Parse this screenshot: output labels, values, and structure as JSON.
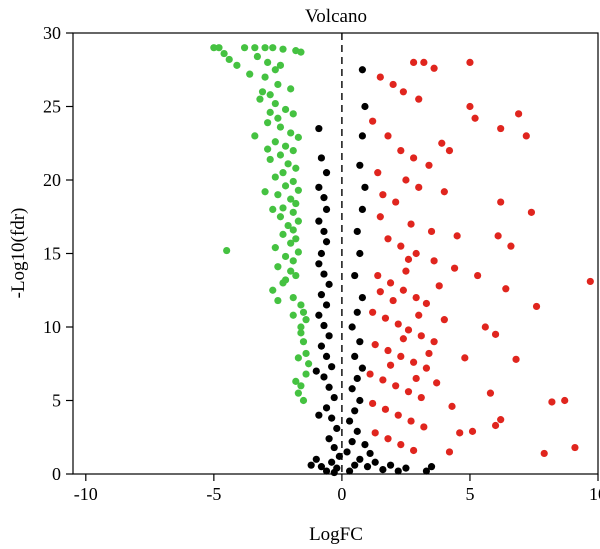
{
  "chart_data": {
    "type": "scatter",
    "title": "Volcano",
    "xlabel": "LogFC",
    "ylabel": "-Log10(fdr)",
    "xlim": [
      -10.5,
      10
    ],
    "ylim": [
      0,
      30
    ],
    "xticks": [
      -10,
      -5,
      0,
      5,
      10
    ],
    "yticks": [
      0,
      5,
      10,
      15,
      20,
      25,
      30
    ],
    "grid": false,
    "legend": "none",
    "vline": 0,
    "series": [
      {
        "color": "#45c241",
        "points": [
          [
            -5.0,
            29.0
          ],
          [
            -4.8,
            29.0
          ],
          [
            -4.6,
            28.6
          ],
          [
            -4.4,
            28.2
          ],
          [
            -4.1,
            27.8
          ],
          [
            -3.8,
            29.0
          ],
          [
            -3.4,
            29.0
          ],
          [
            -3.0,
            29.0
          ],
          [
            -2.7,
            29.0
          ],
          [
            -2.3,
            28.9
          ],
          [
            -1.8,
            28.8
          ],
          [
            -1.6,
            28.7
          ],
          [
            -2.9,
            28.0
          ],
          [
            -2.6,
            27.5
          ],
          [
            -3.0,
            27.0
          ],
          [
            -2.5,
            26.5
          ],
          [
            -2.0,
            26.2
          ],
          [
            -2.8,
            25.8
          ],
          [
            -3.2,
            25.5
          ],
          [
            -2.6,
            25.2
          ],
          [
            -2.2,
            24.8
          ],
          [
            -1.9,
            24.5
          ],
          [
            -2.5,
            24.2
          ],
          [
            -2.9,
            23.9
          ],
          [
            -2.4,
            23.6
          ],
          [
            -2.0,
            23.2
          ],
          [
            -1.7,
            22.9
          ],
          [
            -2.6,
            22.6
          ],
          [
            -2.2,
            22.3
          ],
          [
            -1.9,
            22.0
          ],
          [
            -2.4,
            21.7
          ],
          [
            -2.8,
            21.4
          ],
          [
            -2.1,
            21.1
          ],
          [
            -1.8,
            20.8
          ],
          [
            -2.3,
            20.5
          ],
          [
            -2.6,
            20.2
          ],
          [
            -1.9,
            19.9
          ],
          [
            -2.2,
            19.6
          ],
          [
            -1.7,
            19.3
          ],
          [
            -2.5,
            19.0
          ],
          [
            -2.0,
            18.7
          ],
          [
            -1.8,
            18.4
          ],
          [
            -2.3,
            18.1
          ],
          [
            -1.9,
            17.8
          ],
          [
            -2.4,
            17.5
          ],
          [
            -1.7,
            17.2
          ],
          [
            -2.1,
            16.9
          ],
          [
            -1.9,
            16.6
          ],
          [
            -2.3,
            16.3
          ],
          [
            -1.8,
            16.0
          ],
          [
            -2.0,
            15.7
          ],
          [
            -2.6,
            15.4
          ],
          [
            -1.7,
            15.1
          ],
          [
            -2.2,
            14.8
          ],
          [
            -1.9,
            14.5
          ],
          [
            -2.5,
            14.1
          ],
          [
            -2.0,
            13.8
          ],
          [
            -1.8,
            13.5
          ],
          [
            -2.3,
            13.0
          ],
          [
            -2.7,
            12.5
          ],
          [
            -1.9,
            12.0
          ],
          [
            -1.6,
            11.5
          ],
          [
            -1.5,
            11.0
          ],
          [
            -1.4,
            10.5
          ],
          [
            -1.6,
            10.0
          ],
          [
            -1.5,
            9.0
          ],
          [
            -1.4,
            8.2
          ],
          [
            -1.3,
            7.5
          ],
          [
            -1.4,
            6.8
          ],
          [
            -1.6,
            6.0
          ],
          [
            -1.7,
            5.5
          ],
          [
            -1.5,
            5.0
          ],
          [
            -4.5,
            15.2
          ],
          [
            -3.3,
            28.4
          ],
          [
            -3.6,
            27.2
          ],
          [
            -3.1,
            26.0
          ],
          [
            -2.8,
            24.6
          ],
          [
            -2.4,
            27.8
          ],
          [
            -3.4,
            23.0
          ],
          [
            -2.9,
            22.1
          ],
          [
            -3.0,
            19.2
          ],
          [
            -2.7,
            18.0
          ],
          [
            -2.2,
            13.2
          ],
          [
            -2.5,
            11.8
          ],
          [
            -1.9,
            10.8
          ],
          [
            -1.6,
            9.6
          ],
          [
            -1.7,
            7.9
          ],
          [
            -1.8,
            6.3
          ]
        ]
      },
      {
        "color": "#000000",
        "points": [
          [
            -0.9,
            23.5
          ],
          [
            -0.8,
            21.5
          ],
          [
            -0.6,
            20.5
          ],
          [
            -0.9,
            19.5
          ],
          [
            -0.7,
            18.8
          ],
          [
            -0.6,
            18.0
          ],
          [
            -0.9,
            17.2
          ],
          [
            -0.7,
            16.5
          ],
          [
            -0.6,
            15.8
          ],
          [
            -0.8,
            15.0
          ],
          [
            -0.9,
            14.3
          ],
          [
            -0.7,
            13.6
          ],
          [
            -0.5,
            12.9
          ],
          [
            -0.8,
            12.2
          ],
          [
            -0.6,
            11.5
          ],
          [
            -0.9,
            10.8
          ],
          [
            -0.7,
            10.1
          ],
          [
            -0.5,
            9.4
          ],
          [
            -0.8,
            8.7
          ],
          [
            -0.6,
            8.0
          ],
          [
            -0.4,
            7.3
          ],
          [
            -0.7,
            6.6
          ],
          [
            -0.5,
            5.9
          ],
          [
            -0.3,
            5.2
          ],
          [
            -0.6,
            4.5
          ],
          [
            -0.4,
            3.8
          ],
          [
            -0.2,
            3.1
          ],
          [
            -0.5,
            2.4
          ],
          [
            -0.3,
            1.8
          ],
          [
            -0.1,
            1.2
          ],
          [
            -0.4,
            0.8
          ],
          [
            -0.2,
            0.4
          ],
          [
            -0.6,
            0.2
          ],
          [
            -0.8,
            0.5
          ],
          [
            -0.3,
            0.1
          ],
          [
            0.3,
            0.2
          ],
          [
            0.5,
            0.6
          ],
          [
            0.7,
            1.0
          ],
          [
            0.2,
            1.5
          ],
          [
            0.4,
            2.2
          ],
          [
            0.6,
            2.9
          ],
          [
            0.3,
            3.6
          ],
          [
            0.5,
            4.3
          ],
          [
            0.7,
            5.0
          ],
          [
            0.4,
            5.8
          ],
          [
            0.6,
            6.5
          ],
          [
            0.8,
            7.2
          ],
          [
            0.5,
            8.0
          ],
          [
            0.7,
            9.0
          ],
          [
            0.4,
            10.0
          ],
          [
            0.6,
            11.0
          ],
          [
            0.8,
            12.0
          ],
          [
            0.5,
            13.5
          ],
          [
            0.7,
            15.0
          ],
          [
            0.6,
            16.5
          ],
          [
            0.8,
            18.0
          ],
          [
            0.9,
            19.5
          ],
          [
            0.7,
            21.0
          ],
          [
            0.8,
            23.0
          ],
          [
            0.9,
            25.0
          ],
          [
            0.8,
            27.5
          ],
          [
            1.0,
            0.5
          ],
          [
            1.3,
            0.8
          ],
          [
            1.6,
            0.3
          ],
          [
            1.9,
            0.6
          ],
          [
            2.2,
            0.2
          ],
          [
            2.5,
            0.4
          ],
          [
            1.1,
            1.4
          ],
          [
            0.9,
            2.0
          ],
          [
            3.3,
            0.2
          ],
          [
            3.5,
            0.5
          ],
          [
            -1.0,
            1.0
          ],
          [
            -1.2,
            0.6
          ],
          [
            -0.9,
            4.0
          ],
          [
            -1.0,
            7.0
          ]
        ]
      },
      {
        "color": "#e0251e",
        "points": [
          [
            2.8,
            28.0
          ],
          [
            3.2,
            28.0
          ],
          [
            3.6,
            27.6
          ],
          [
            5.0,
            28.0
          ],
          [
            1.5,
            27.0
          ],
          [
            2.0,
            26.5
          ],
          [
            2.4,
            26.0
          ],
          [
            3.0,
            25.5
          ],
          [
            5.0,
            25.0
          ],
          [
            6.9,
            24.5
          ],
          [
            5.2,
            24.2
          ],
          [
            6.2,
            23.5
          ],
          [
            7.2,
            23.0
          ],
          [
            1.2,
            24.0
          ],
          [
            1.8,
            23.0
          ],
          [
            2.3,
            22.0
          ],
          [
            2.8,
            21.5
          ],
          [
            3.4,
            21.0
          ],
          [
            3.9,
            22.5
          ],
          [
            4.2,
            22.0
          ],
          [
            1.4,
            20.5
          ],
          [
            2.5,
            20.0
          ],
          [
            3.0,
            19.5
          ],
          [
            4.0,
            19.2
          ],
          [
            1.6,
            19.0
          ],
          [
            2.1,
            18.5
          ],
          [
            6.2,
            18.5
          ],
          [
            7.4,
            17.8
          ],
          [
            1.5,
            17.5
          ],
          [
            2.7,
            17.0
          ],
          [
            3.5,
            16.5
          ],
          [
            4.5,
            16.2
          ],
          [
            6.1,
            16.2
          ],
          [
            6.6,
            15.5
          ],
          [
            1.8,
            16.0
          ],
          [
            2.3,
            15.5
          ],
          [
            2.9,
            15.0
          ],
          [
            3.6,
            14.5
          ],
          [
            4.4,
            14.0
          ],
          [
            5.3,
            13.5
          ],
          [
            9.7,
            13.1
          ],
          [
            1.4,
            13.5
          ],
          [
            1.9,
            13.0
          ],
          [
            2.4,
            12.5
          ],
          [
            2.9,
            12.0
          ],
          [
            3.3,
            11.6
          ],
          [
            6.4,
            12.6
          ],
          [
            7.6,
            11.4
          ],
          [
            1.2,
            11.0
          ],
          [
            1.7,
            10.6
          ],
          [
            2.2,
            10.2
          ],
          [
            2.6,
            9.8
          ],
          [
            3.1,
            9.4
          ],
          [
            3.6,
            9.0
          ],
          [
            5.6,
            10.0
          ],
          [
            6.0,
            9.5
          ],
          [
            1.3,
            8.8
          ],
          [
            1.8,
            8.4
          ],
          [
            2.3,
            8.0
          ],
          [
            2.8,
            7.6
          ],
          [
            3.3,
            7.2
          ],
          [
            4.8,
            7.9
          ],
          [
            6.8,
            7.8
          ],
          [
            1.1,
            6.8
          ],
          [
            1.6,
            6.4
          ],
          [
            2.1,
            6.0
          ],
          [
            2.6,
            5.6
          ],
          [
            3.1,
            5.2
          ],
          [
            5.8,
            5.5
          ],
          [
            1.2,
            4.8
          ],
          [
            1.7,
            4.4
          ],
          [
            2.2,
            4.0
          ],
          [
            2.7,
            3.6
          ],
          [
            3.2,
            3.2
          ],
          [
            6.2,
            3.7
          ],
          [
            8.2,
            4.9
          ],
          [
            8.7,
            5.0
          ],
          [
            1.3,
            2.8
          ],
          [
            1.8,
            2.4
          ],
          [
            2.3,
            2.0
          ],
          [
            2.8,
            1.6
          ],
          [
            4.2,
            1.5
          ],
          [
            7.9,
            1.4
          ],
          [
            9.1,
            1.8
          ],
          [
            4.6,
            2.8
          ],
          [
            5.1,
            2.9
          ],
          [
            6.0,
            3.3
          ],
          [
            2.0,
            11.8
          ],
          [
            2.5,
            13.8
          ],
          [
            3.0,
            10.8
          ],
          [
            2.4,
            9.2
          ],
          [
            1.9,
            7.4
          ],
          [
            2.9,
            6.5
          ],
          [
            3.4,
            8.2
          ],
          [
            1.5,
            12.4
          ],
          [
            2.6,
            14.6
          ],
          [
            3.8,
            12.8
          ],
          [
            4.0,
            10.5
          ],
          [
            3.7,
            6.2
          ],
          [
            4.3,
            4.6
          ]
        ]
      }
    ]
  }
}
